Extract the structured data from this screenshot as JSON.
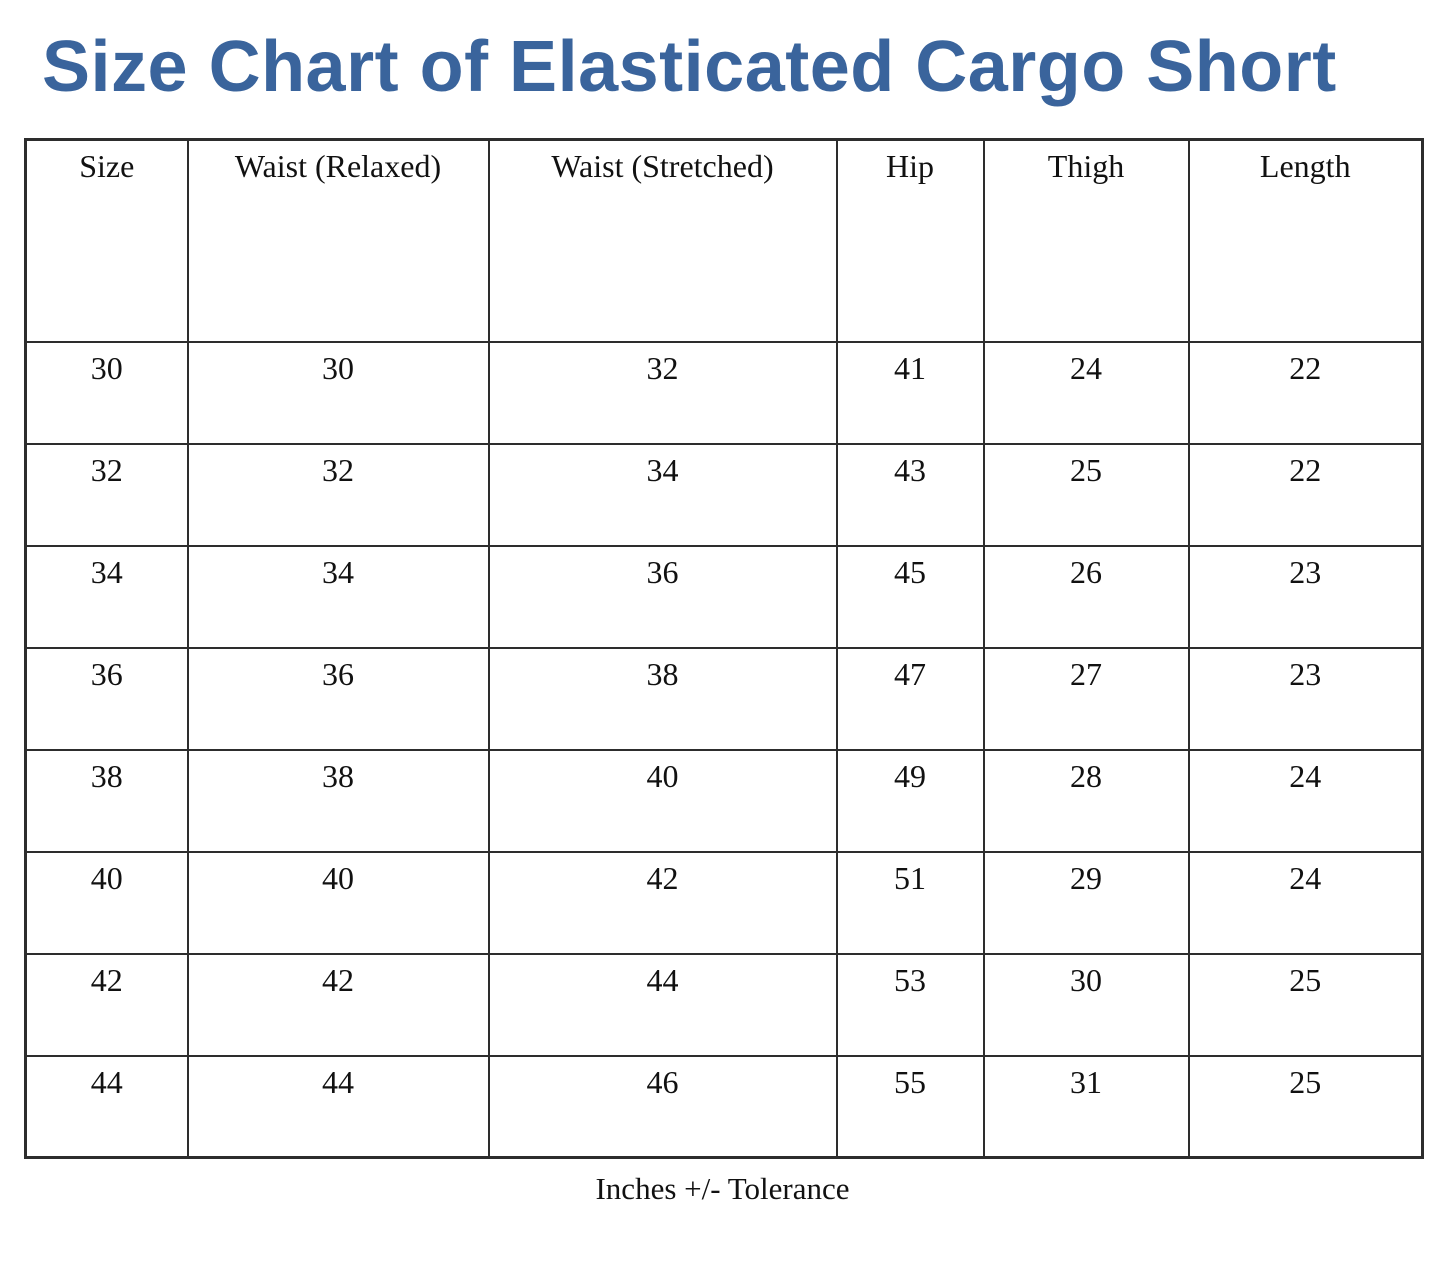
{
  "title": "Size Chart of Elasticated Cargo Short",
  "colors": {
    "title": "#3a649c",
    "table_border": "#2d2d2d",
    "text": "#111111"
  },
  "table": {
    "columns": [
      "Size",
      "Waist (Relaxed)",
      "Waist (Stretched)",
      "Hip",
      "Thigh",
      "Length"
    ],
    "rows": [
      [
        "30",
        "30",
        "32",
        "41",
        "24",
        "22"
      ],
      [
        "32",
        "32",
        "34",
        "43",
        "25",
        "22"
      ],
      [
        "34",
        "34",
        "36",
        "45",
        "26",
        "23"
      ],
      [
        "36",
        "36",
        "38",
        "47",
        "27",
        "23"
      ],
      [
        "38",
        "38",
        "40",
        "49",
        "28",
        "24"
      ],
      [
        "40",
        "40",
        "42",
        "51",
        "29",
        "24"
      ],
      [
        "42",
        "42",
        "44",
        "53",
        "30",
        "25"
      ],
      [
        "44",
        "44",
        "46",
        "55",
        "31",
        "25"
      ]
    ]
  },
  "footer_note": "Inches +/- Tolerance"
}
